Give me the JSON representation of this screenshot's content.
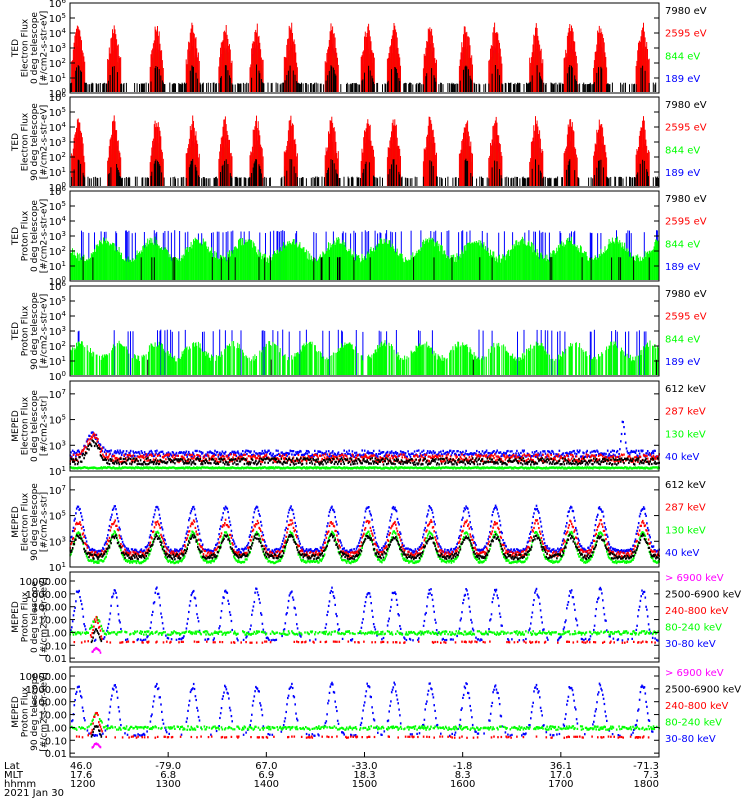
{
  "colors": {
    "black": "#000000",
    "red": "#ff0000",
    "green": "#00ff00",
    "blue": "#0000ff",
    "magenta": "#ff00ff"
  },
  "chart_data": {
    "type": "line",
    "x_time_ticks": [
      "1200",
      "1300",
      "1400",
      "1500",
      "1600",
      "1700",
      "1800"
    ],
    "x_lat": [
      "46.0",
      "-79.0",
      "67.0",
      "-33.0",
      "-1.8",
      "36.1",
      "-71.3"
    ],
    "x_mlt": [
      "17.6",
      "6.8",
      "6.9",
      "18.3",
      "8.3",
      "17.0",
      "7.3"
    ],
    "x_row_labels": [
      "Lat",
      "MLT",
      "hhmm"
    ],
    "date": "2021 Jan 30",
    "panels": [
      {
        "id": "p1",
        "ylabel": [
          "TED",
          "Electron Flux",
          "0 deg telescope",
          "[#/cm2-s-str-eV]"
        ],
        "scale": "log",
        "ylim": [
          1,
          1000000
        ],
        "ticks": [
          {
            "v": 1,
            "base": "10",
            "exp": "0"
          },
          {
            "v": 10,
            "base": "10",
            "exp": "1"
          },
          {
            "v": 100,
            "base": "10",
            "exp": "2"
          },
          {
            "v": 1000,
            "base": "10",
            "exp": "3"
          },
          {
            "v": 10000,
            "base": "10",
            "exp": "4"
          },
          {
            "v": 100000,
            "base": "10",
            "exp": "5"
          },
          {
            "v": 1000000,
            "base": "10",
            "exp": "6"
          }
        ],
        "legend": [
          {
            "name": "7980 eV",
            "color": "#000000"
          },
          {
            "name": "2595 eV",
            "color": "#ff0000"
          },
          {
            "name": "844 eV",
            "color": "#00ff00"
          },
          {
            "name": "189 eV",
            "color": "#0000ff"
          }
        ],
        "pattern": "ted_e"
      },
      {
        "id": "p2",
        "ylabel": [
          "TED",
          "Electron Flux",
          "90 deg telescope",
          "[#/cm2-s-str-eV]"
        ],
        "scale": "log",
        "ylim": [
          1,
          1000000
        ],
        "ticks": [
          {
            "v": 1,
            "base": "10",
            "exp": "0"
          },
          {
            "v": 10,
            "base": "10",
            "exp": "1"
          },
          {
            "v": 100,
            "base": "10",
            "exp": "2"
          },
          {
            "v": 1000,
            "base": "10",
            "exp": "3"
          },
          {
            "v": 10000,
            "base": "10",
            "exp": "4"
          },
          {
            "v": 100000,
            "base": "10",
            "exp": "5"
          },
          {
            "v": 1000000,
            "base": "10",
            "exp": "6"
          }
        ],
        "legend": [
          {
            "name": "7980 eV",
            "color": "#000000"
          },
          {
            "name": "2595 eV",
            "color": "#ff0000"
          },
          {
            "name": "844 eV",
            "color": "#00ff00"
          },
          {
            "name": "189 eV",
            "color": "#0000ff"
          }
        ],
        "pattern": "ted_e"
      },
      {
        "id": "p3",
        "ylabel": [
          "TED",
          "Proton Flux",
          "0 deg telescope",
          "[#/cm2-s-str-eV]"
        ],
        "scale": "log",
        "ylim": [
          1,
          1000000
        ],
        "ticks": [
          {
            "v": 1,
            "base": "10",
            "exp": "0"
          },
          {
            "v": 10,
            "base": "10",
            "exp": "1"
          },
          {
            "v": 100,
            "base": "10",
            "exp": "2"
          },
          {
            "v": 1000,
            "base": "10",
            "exp": "3"
          },
          {
            "v": 10000,
            "base": "10",
            "exp": "4"
          },
          {
            "v": 100000,
            "base": "10",
            "exp": "5"
          },
          {
            "v": 1000000,
            "base": "10",
            "exp": "6"
          }
        ],
        "legend": [
          {
            "name": "7980 eV",
            "color": "#000000"
          },
          {
            "name": "2595 eV",
            "color": "#ff0000"
          },
          {
            "name": "844 eV",
            "color": "#00ff00"
          },
          {
            "name": "189 eV",
            "color": "#0000ff"
          }
        ],
        "pattern": "ted_p0"
      },
      {
        "id": "p4",
        "ylabel": [
          "TED",
          "Proton Flux",
          "90 deg telescope",
          "[#/cm2-s-str-eV]"
        ],
        "scale": "log",
        "ylim": [
          1,
          1000000
        ],
        "ticks": [
          {
            "v": 1,
            "base": "10",
            "exp": "0"
          },
          {
            "v": 10,
            "base": "10",
            "exp": "1"
          },
          {
            "v": 100,
            "base": "10",
            "exp": "2"
          },
          {
            "v": 1000,
            "base": "10",
            "exp": "3"
          },
          {
            "v": 10000,
            "base": "10",
            "exp": "4"
          },
          {
            "v": 100000,
            "base": "10",
            "exp": "5"
          },
          {
            "v": 1000000,
            "base": "10",
            "exp": "6"
          }
        ],
        "legend": [
          {
            "name": "7980 eV",
            "color": "#000000"
          },
          {
            "name": "2595 eV",
            "color": "#ff0000"
          },
          {
            "name": "844 eV",
            "color": "#00ff00"
          },
          {
            "name": "189 eV",
            "color": "#0000ff"
          }
        ],
        "pattern": "ted_p90"
      },
      {
        "id": "p5",
        "ylabel": [
          "MEPED",
          "Electron Flux",
          "0 deg telescope",
          "[#/cm2-s-str]"
        ],
        "scale": "log",
        "ylim": [
          10,
          100000000
        ],
        "ticks": [
          {
            "v": 10,
            "base": "10",
            "exp": "1"
          },
          {
            "v": 1000,
            "base": "10",
            "exp": "3"
          },
          {
            "v": 100000,
            "base": "10",
            "exp": "5"
          },
          {
            "v": 10000000,
            "base": "10",
            "exp": "7"
          }
        ],
        "legend": [
          {
            "name": "612 keV",
            "color": "#000000"
          },
          {
            "name": "287 keV",
            "color": "#ff0000"
          },
          {
            "name": "130 keV",
            "color": "#00ff00"
          },
          {
            "name": "40 keV",
            "color": "#0000ff"
          }
        ],
        "pattern": "meped0"
      },
      {
        "id": "p6",
        "ylabel": [
          "MEPED",
          "Electron Flux",
          "90 deg telescope",
          "[#/cm2-s-str]"
        ],
        "scale": "log",
        "ylim": [
          10,
          100000000
        ],
        "ticks": [
          {
            "v": 10,
            "base": "10",
            "exp": "1"
          },
          {
            "v": 1000,
            "base": "10",
            "exp": "3"
          },
          {
            "v": 100000,
            "base": "10",
            "exp": "5"
          },
          {
            "v": 10000000,
            "base": "10",
            "exp": "7"
          }
        ],
        "legend": [
          {
            "name": "612 keV",
            "color": "#000000"
          },
          {
            "name": "287 keV",
            "color": "#ff0000"
          },
          {
            "name": "130 keV",
            "color": "#00ff00"
          },
          {
            "name": "40 keV",
            "color": "#0000ff"
          }
        ],
        "pattern": "meped90"
      },
      {
        "id": "p7",
        "ylabel": [
          "MEPED",
          "Proton Flux",
          "0 deg telescope",
          "[#/cm2-s-str-keV]"
        ],
        "scale": "log",
        "ylim": [
          0.005,
          50000
        ],
        "ticks": [
          {
            "v": 0.01,
            "label": "0.01"
          },
          {
            "v": 0.1,
            "label": "0.10"
          },
          {
            "v": 1,
            "label": "1.00"
          },
          {
            "v": 10,
            "label": "10.00"
          },
          {
            "v": 100,
            "label": "100.00"
          },
          {
            "v": 1000,
            "label": "1000.00"
          },
          {
            "v": 10000,
            "label": "10000.00"
          }
        ],
        "legend": [
          {
            "name": "> 6900 keV",
            "color": "#ff00ff"
          },
          {
            "name": "2500-6900 keV",
            "color": "#000000"
          },
          {
            "name": "240-800 keV",
            "color": "#ff0000"
          },
          {
            "name": "80-240 keV",
            "color": "#00ff00"
          },
          {
            "name": "30-80 keV",
            "color": "#0000ff"
          }
        ],
        "pattern": "mpp"
      },
      {
        "id": "p8",
        "ylabel": [
          "MEPED",
          "Proton Flux",
          "90 deg telescope",
          "[#/cm2-s-str-keV]"
        ],
        "scale": "log",
        "ylim": [
          0.005,
          50000
        ],
        "ticks": [
          {
            "v": 0.01,
            "label": "0.01"
          },
          {
            "v": 0.1,
            "label": "0.10"
          },
          {
            "v": 1,
            "label": "1.00"
          },
          {
            "v": 10,
            "label": "10.00"
          },
          {
            "v": 100,
            "label": "100.00"
          },
          {
            "v": 1000,
            "label": "1000.00"
          },
          {
            "v": 10000,
            "label": "10000.00"
          }
        ],
        "legend": [
          {
            "name": "> 6900 keV",
            "color": "#ff00ff"
          },
          {
            "name": "2500-6900 keV",
            "color": "#000000"
          },
          {
            "name": "240-800 keV",
            "color": "#ff0000"
          },
          {
            "name": "80-240 keV",
            "color": "#00ff00"
          },
          {
            "name": "30-80 keV",
            "color": "#0000ff"
          }
        ],
        "pattern": "mpp"
      }
    ],
    "pass_centers_hhmm": [
      "1205",
      "1227",
      "1253",
      "1315",
      "1335",
      "1354",
      "1415",
      "1440",
      "1502",
      "1518",
      "1540",
      "1602",
      "1620",
      "1645",
      "1706",
      "1724",
      "1750"
    ]
  }
}
